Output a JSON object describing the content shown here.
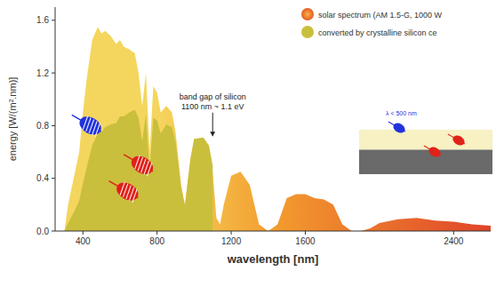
{
  "chart_data": {
    "type": "area",
    "x_label": "wavelength [nm]",
    "y_label": "energy [W/(m².nm)]",
    "x": [
      280,
      300,
      320,
      350,
      380,
      400,
      420,
      450,
      480,
      500,
      520,
      550,
      580,
      600,
      620,
      650,
      680,
      700,
      720,
      740,
      760,
      780,
      800,
      820,
      850,
      880,
      900,
      930,
      950,
      980,
      1000,
      1050,
      1080,
      1100,
      1120,
      1140,
      1160,
      1200,
      1250,
      1300,
      1350,
      1400,
      1450,
      1500,
      1550,
      1600,
      1650,
      1700,
      1750,
      1800,
      1850,
      1900,
      1950,
      2000,
      2100,
      2200,
      2300,
      2400,
      2500,
      2600
    ],
    "series": [
      {
        "name": "solar spectrum (AM 1.5-G, 1000 W",
        "color": "#f39c2e",
        "values": [
          0,
          0,
          0.2,
          0.4,
          0.6,
          0.9,
          1.15,
          1.45,
          1.55,
          1.5,
          1.52,
          1.48,
          1.42,
          1.45,
          1.4,
          1.38,
          1.35,
          1.2,
          0.95,
          1.2,
          0.6,
          1.1,
          1.05,
          0.9,
          0.95,
          0.9,
          0.75,
          0.35,
          0.2,
          0.55,
          0.7,
          0.68,
          0.6,
          0.45,
          0.1,
          0.05,
          0.2,
          0.42,
          0.45,
          0.35,
          0.05,
          0,
          0.05,
          0.25,
          0.28,
          0.28,
          0.25,
          0.24,
          0.2,
          0.05,
          0,
          0,
          0.02,
          0.06,
          0.09,
          0.1,
          0.08,
          0.07,
          0.05,
          0.04
        ]
      },
      {
        "name": "converted by crystalline silicon ce",
        "color": "#c9bf3c",
        "values": [
          0,
          0,
          0.06,
          0.14,
          0.23,
          0.36,
          0.48,
          0.65,
          0.74,
          0.75,
          0.79,
          0.81,
          0.82,
          0.87,
          0.87,
          0.9,
          0.92,
          0.86,
          0.68,
          0.89,
          0.46,
          0.86,
          0.84,
          0.74,
          0.81,
          0.79,
          0.68,
          0.33,
          0.19,
          0.54,
          0.7,
          0.71,
          0.65,
          0.5,
          null,
          null,
          null,
          null,
          null,
          null,
          null,
          null,
          null,
          null,
          null,
          null,
          null,
          null,
          null,
          null,
          null,
          null,
          null,
          null,
          null,
          null,
          null,
          null,
          null,
          null
        ]
      }
    ],
    "xlim": [
      250,
      2600
    ],
    "xticks": [
      400,
      800,
      1200,
      1600,
      2400
    ],
    "ylim": [
      0,
      1.7
    ],
    "yticks": [
      {
        "value": 0,
        "label": "0.0"
      },
      0.4,
      0.8,
      1.2,
      1.6
    ],
    "legend": "upper right",
    "grid": false,
    "annotations": [
      {
        "text": "band gap of silicon",
        "x": 1100
      },
      {
        "text": "1100 nm ~ 1.1 eV",
        "x": 1100
      },
      {
        "text": "λ < 500 nm"
      }
    ]
  }
}
